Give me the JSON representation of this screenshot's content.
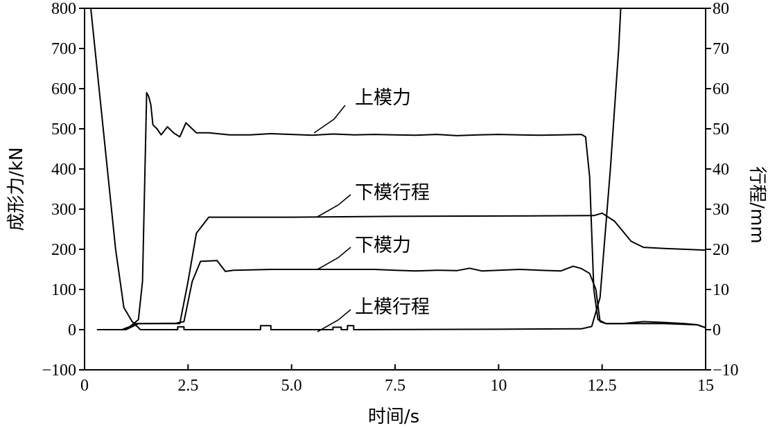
{
  "chart_data": {
    "type": "line",
    "xlabel": "时间/s",
    "ylabel_left": "成形力/kN",
    "ylabel_right": "行程/mm",
    "xlim": [
      0,
      15
    ],
    "ylim_left": [
      -100,
      800
    ],
    "ylim_right": [
      -10,
      80
    ],
    "x_ticks": [
      "0",
      "2.5",
      "5.0",
      "7.5",
      "10",
      "12.5",
      "15"
    ],
    "x_tick_values": [
      0,
      2.5,
      5.0,
      7.5,
      10,
      12.5,
      15
    ],
    "left_ticks": [
      "800",
      "700",
      "600",
      "500",
      "400",
      "300",
      "200",
      "100",
      "0",
      "−100"
    ],
    "left_tick_values": [
      800,
      700,
      600,
      500,
      400,
      300,
      200,
      100,
      0,
      -100
    ],
    "right_ticks": [
      "80",
      "70",
      "60",
      "50",
      "40",
      "30",
      "20",
      "10",
      "0",
      "−10"
    ],
    "right_tick_values": [
      80,
      70,
      60,
      50,
      40,
      30,
      20,
      10,
      0,
      -10
    ],
    "grid": false,
    "series": [
      {
        "name": "上模力",
        "axis": "left",
        "points": [
          [
            0.3,
            0
          ],
          [
            0.9,
            0
          ],
          [
            1.1,
            8
          ],
          [
            1.3,
            25
          ],
          [
            1.4,
            120
          ],
          [
            1.5,
            590
          ],
          [
            1.55,
            580
          ],
          [
            1.6,
            560
          ],
          [
            1.65,
            510
          ],
          [
            1.75,
            500
          ],
          [
            1.85,
            485
          ],
          [
            2.0,
            505
          ],
          [
            2.15,
            490
          ],
          [
            2.3,
            480
          ],
          [
            2.45,
            515
          ],
          [
            2.55,
            505
          ],
          [
            2.7,
            490
          ],
          [
            3.0,
            490
          ],
          [
            3.5,
            485
          ],
          [
            4.0,
            485
          ],
          [
            4.5,
            488
          ],
          [
            5.0,
            486
          ],
          [
            5.5,
            484
          ],
          [
            6.0,
            487
          ],
          [
            6.5,
            485
          ],
          [
            7.0,
            486
          ],
          [
            7.5,
            485
          ],
          [
            8.0,
            484
          ],
          [
            8.5,
            486
          ],
          [
            9.0,
            483
          ],
          [
            9.5,
            485
          ],
          [
            10.0,
            486
          ],
          [
            10.5,
            485
          ],
          [
            11.0,
            484
          ],
          [
            11.5,
            485
          ],
          [
            12.0,
            486
          ],
          [
            12.1,
            480
          ],
          [
            12.2,
            380
          ],
          [
            12.3,
            100
          ],
          [
            12.4,
            25
          ],
          [
            12.6,
            15
          ],
          [
            13.0,
            15
          ],
          [
            14.0,
            15
          ],
          [
            14.8,
            12
          ],
          [
            15.0,
            5
          ]
        ]
      },
      {
        "name": "下模行程",
        "axis": "right",
        "points": [
          [
            0.3,
            0
          ],
          [
            1.0,
            0
          ],
          [
            1.2,
            1.5
          ],
          [
            2.3,
            1.5
          ],
          [
            2.5,
            12
          ],
          [
            2.7,
            24
          ],
          [
            3.0,
            28
          ],
          [
            3.5,
            28
          ],
          [
            5.0,
            28
          ],
          [
            7.5,
            28.2
          ],
          [
            10.0,
            28.3
          ],
          [
            12.3,
            28.4
          ],
          [
            12.5,
            29
          ],
          [
            12.8,
            27
          ],
          [
            13.2,
            22
          ],
          [
            13.5,
            20.5
          ],
          [
            14.0,
            20.2
          ],
          [
            15.0,
            19.8
          ]
        ]
      },
      {
        "name": "下模力",
        "axis": "left",
        "points": [
          [
            1.0,
            0
          ],
          [
            1.3,
            15
          ],
          [
            2.2,
            16
          ],
          [
            2.4,
            20
          ],
          [
            2.6,
            120
          ],
          [
            2.8,
            170
          ],
          [
            3.2,
            172
          ],
          [
            3.4,
            145
          ],
          [
            3.6,
            148
          ],
          [
            4.5,
            150
          ],
          [
            5.5,
            150
          ],
          [
            6.5,
            150
          ],
          [
            7.0,
            150
          ],
          [
            7.5,
            148
          ],
          [
            8.0,
            146
          ],
          [
            8.5,
            148
          ],
          [
            9.0,
            147
          ],
          [
            9.3,
            153
          ],
          [
            9.6,
            146
          ],
          [
            10.0,
            148
          ],
          [
            10.5,
            150
          ],
          [
            11.0,
            148
          ],
          [
            11.5,
            146
          ],
          [
            11.8,
            158
          ],
          [
            12.0,
            152
          ],
          [
            12.2,
            140
          ],
          [
            12.35,
            100
          ],
          [
            12.45,
            20
          ],
          [
            12.6,
            15
          ],
          [
            13.0,
            15
          ],
          [
            13.5,
            20
          ],
          [
            14.0,
            18
          ],
          [
            14.5,
            15
          ],
          [
            14.8,
            12
          ],
          [
            15.0,
            5
          ]
        ]
      },
      {
        "name": "上模行程",
        "axis": "right",
        "points": [
          [
            0.0,
            100
          ],
          [
            0.15,
            80
          ],
          [
            0.45,
            50
          ],
          [
            0.75,
            20
          ],
          [
            0.95,
            5.5
          ],
          [
            1.15,
            2
          ],
          [
            1.35,
            0
          ],
          [
            1.5,
            0
          ],
          [
            2.25,
            0
          ],
          [
            2.25,
            0.7
          ],
          [
            2.4,
            0.7
          ],
          [
            2.4,
            0
          ],
          [
            4.25,
            0
          ],
          [
            4.25,
            1
          ],
          [
            4.5,
            1
          ],
          [
            4.5,
            0
          ],
          [
            6.0,
            0
          ],
          [
            6.0,
            0.6
          ],
          [
            6.2,
            0.6
          ],
          [
            6.2,
            0
          ],
          [
            6.35,
            0
          ],
          [
            6.35,
            1
          ],
          [
            6.5,
            1
          ],
          [
            6.5,
            0
          ],
          [
            8.0,
            0.05
          ],
          [
            10.0,
            0.1
          ],
          [
            12.0,
            0.2
          ],
          [
            12.25,
            0.8
          ],
          [
            12.45,
            8
          ],
          [
            12.7,
            40
          ],
          [
            12.9,
            70
          ],
          [
            13.05,
            100
          ]
        ]
      }
    ],
    "annotations": [
      "上模力",
      "下模行程",
      "下模力",
      "上模行程"
    ]
  }
}
